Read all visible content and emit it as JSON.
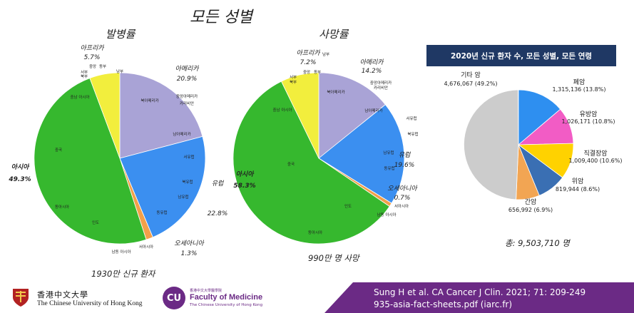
{
  "page_title": "모든 성별",
  "incidence": {
    "title": "발병률",
    "total": "1930만 신규 환자",
    "continents": [
      {
        "name": "아프리카",
        "pct": "5.7%"
      },
      {
        "name": "아메리카",
        "pct": "20.9%"
      },
      {
        "name": "유럽",
        "pct": "22.8%"
      },
      {
        "name": "오세아니아",
        "pct": "1.3%"
      },
      {
        "name": "아시아",
        "pct": "49.3%"
      }
    ],
    "region_labels": [
      "중앙",
      "동부",
      "서부",
      "북부",
      "남부",
      "북아메리카",
      "중앙아메리카",
      "카리비안",
      "남아메리카",
      "서유럽",
      "북유럽",
      "남유럽",
      "동유럽",
      "서아시아",
      "남동 아시아",
      "인도",
      "동아시아",
      "중국",
      "중남 아시아"
    ]
  },
  "mortality": {
    "title": "사망률",
    "total": "990만 명 사망",
    "continents": [
      {
        "name": "아프리카",
        "pct": "7.2%"
      },
      {
        "name": "아메리카",
        "pct": "14.2%"
      },
      {
        "name": "유럽",
        "pct": "19.6%"
      },
      {
        "name": "오세아니아",
        "pct": "0.7%"
      },
      {
        "name": "아시아",
        "pct": "58.3%"
      }
    ],
    "region_labels": [
      "중앙",
      "동부",
      "서부",
      "북부",
      "남부",
      "북아메리카",
      "중앙아메리카",
      "카리비안",
      "남아메리카",
      "서유럽",
      "북유럽",
      "남유럽",
      "동유럽",
      "서아시아",
      "남동 아시아",
      "인도",
      "동아시아",
      "중국",
      "중남 아시아"
    ]
  },
  "new_cases": {
    "header": "2020년 신규 환자 수, 모든 성별, 모든 연령",
    "total": "총: 9,503,710 명",
    "slices": [
      {
        "name": "폐암",
        "value": "1,315,136 (13.8%)",
        "pct": 13.8,
        "color": "#2e8ff0"
      },
      {
        "name": "유방암",
        "value": "1,026,171 (10.8%)",
        "pct": 10.8,
        "color": "#f25cc5"
      },
      {
        "name": "직결장암",
        "value": "1,009,400 (10.6%)",
        "pct": 10.6,
        "color": "#ffd200"
      },
      {
        "name": "위암",
        "value": "819,944 (8.6%)",
        "pct": 8.6,
        "color": "#3a6fb3"
      },
      {
        "name": "간암",
        "value": "656,992 (6.9%)",
        "pct": 6.9,
        "color": "#f2a553"
      },
      {
        "name": "기타 암",
        "value": "4,676,067 (49.2%)",
        "pct": 49.2,
        "color": "#cccccc"
      }
    ]
  },
  "footer": {
    "citation": "Sung H et al. CA Cancer J Clin. 2021; 71: 209-249",
    "source": "935-asia-fact-sheets.pdf (iarc.fr)",
    "cuhk_cn": "香港中文大學",
    "cuhk_en": "The Chinese University of Hong Kong",
    "cu_badge": "CU",
    "fm_small": "香港中文大學醫學院",
    "fm_name": "Faculty of Medicine",
    "fm_uni": "The Chinese University of Hong Kong"
  },
  "colors": {
    "asia": "#36b82e",
    "america": "#a9a3d6",
    "europe": "#3b8ff0",
    "oceania": "#f2a04a",
    "africa": "#f2ee3d",
    "header": "#1f3864",
    "footer": "#6b2a85"
  }
}
